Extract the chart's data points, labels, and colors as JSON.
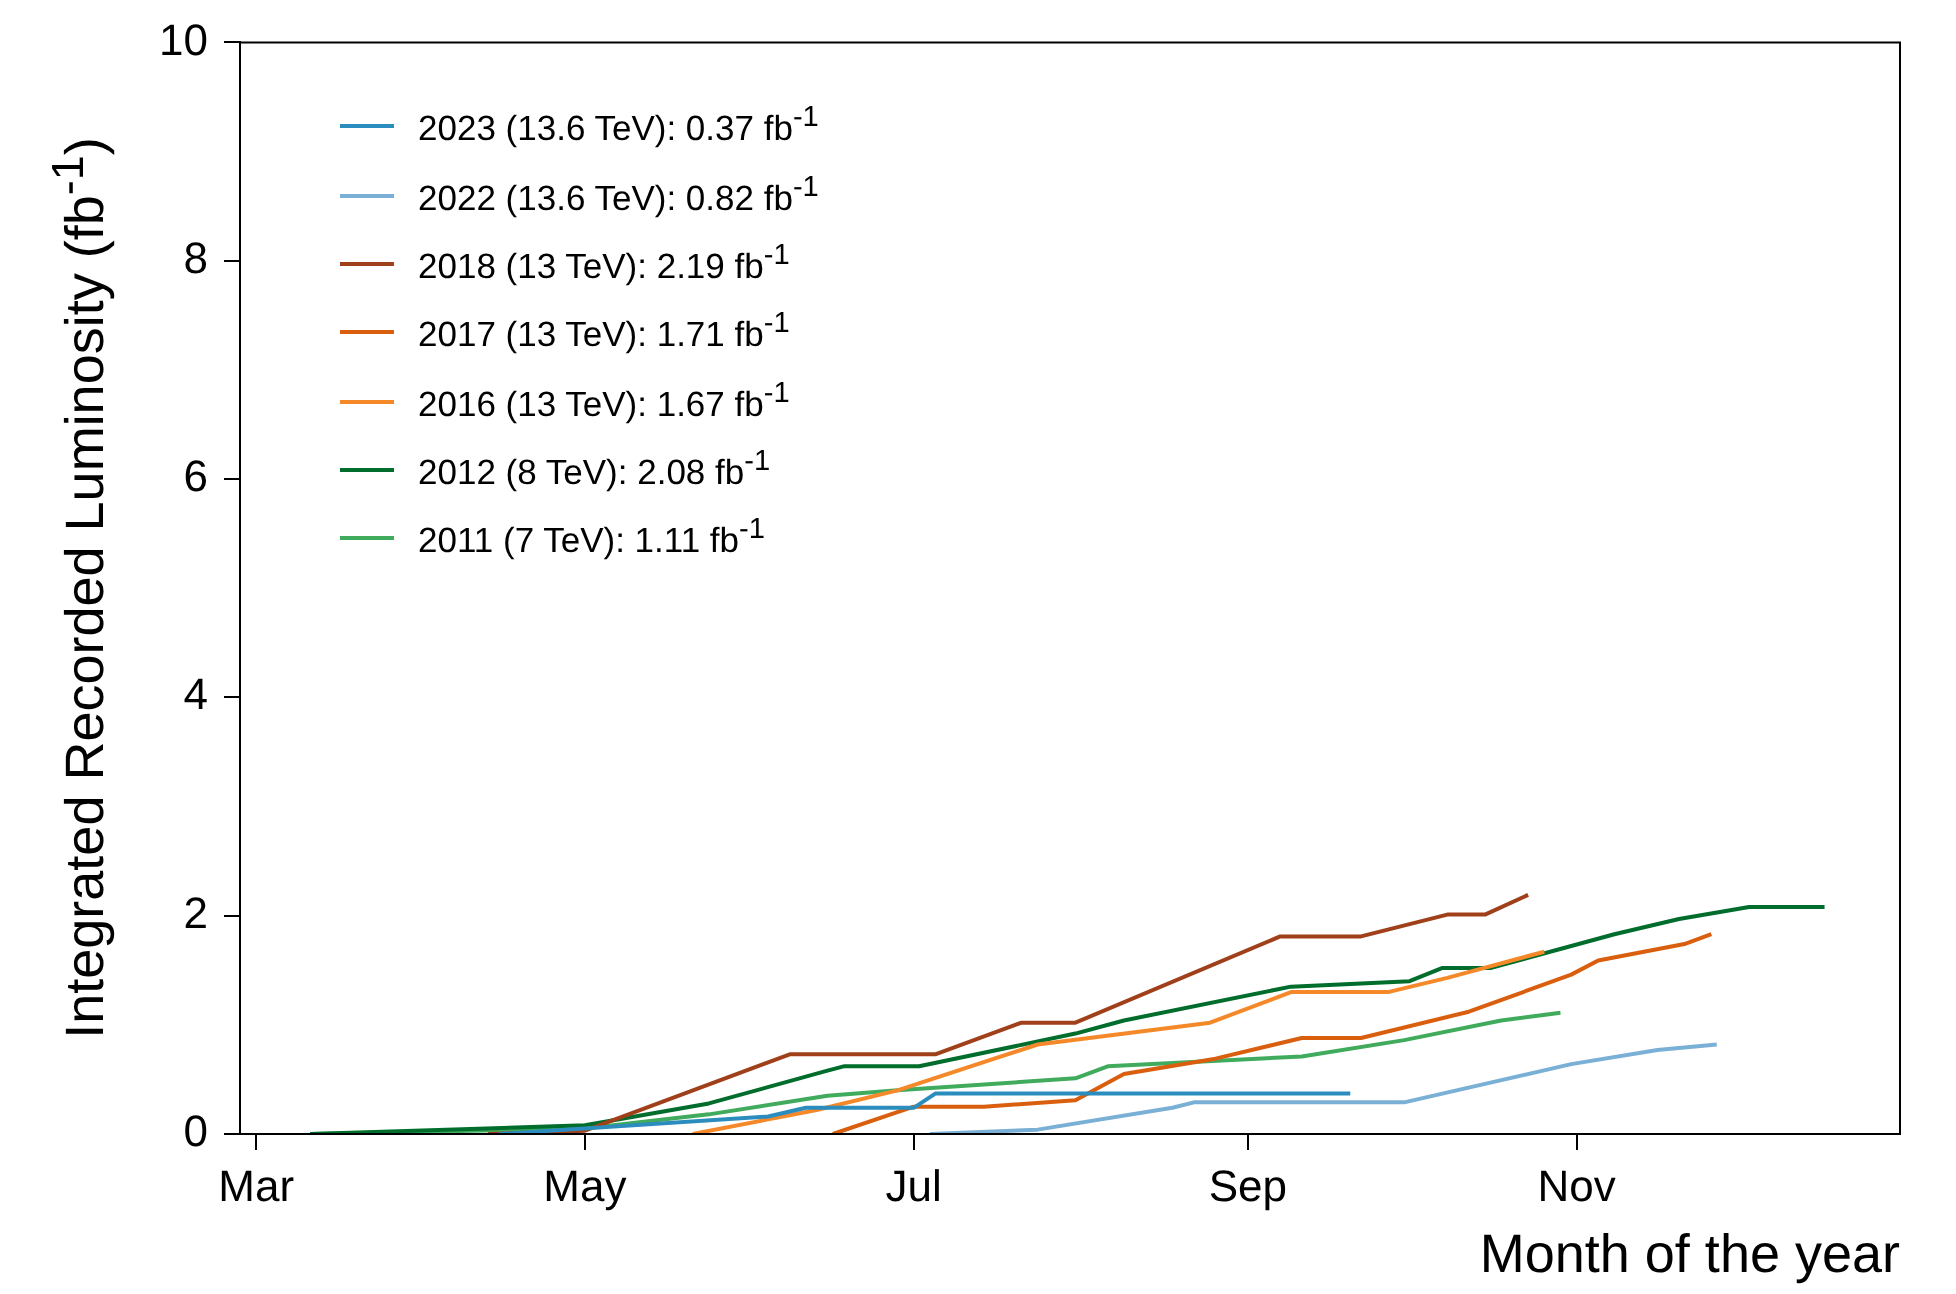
{
  "chart_data": {
    "type": "line",
    "xlabel": "Month of the year",
    "ylabel": "Integrated Recorded Luminosity (fb$^{-1}$)",
    "xlim": [
      "--02-26",
      "--12-31"
    ],
    "xticks": [
      {
        "value": "--03-01",
        "label": "Mar"
      },
      {
        "value": "--05-01",
        "label": "May"
      },
      {
        "value": "--07-01",
        "label": "Jul"
      },
      {
        "value": "--09-01",
        "label": "Sep"
      },
      {
        "value": "--11-01",
        "label": "Nov"
      }
    ],
    "ylim": [
      0,
      10
    ],
    "yticks": [
      0,
      2,
      4,
      6,
      8,
      10
    ],
    "grid": false,
    "legend": "top left",
    "line_style": "solid",
    "marker": "none",
    "series": [
      {
        "name": "2023 (13.6 TeV): 0.37 fb$^{-1}$",
        "color": "#2b8cbe",
        "x": [
          "--04-15",
          "--06-04",
          "--06-11",
          "--07-01",
          "--07-05",
          "--09-20"
        ],
        "values": [
          0,
          0.16,
          0.24,
          0.24,
          0.37,
          0.37
        ]
      },
      {
        "name": "2022 (13.6 TeV): 0.82 fb$^{-1}$",
        "color": "#7bb0d6",
        "x": [
          "--07-04",
          "--07-24",
          "--08-18",
          "--08-22",
          "--09-30",
          "--10-31",
          "--11-16",
          "--11-27"
        ],
        "values": [
          0,
          0.04,
          0.24,
          0.29,
          0.29,
          0.64,
          0.77,
          0.82
        ]
      },
      {
        "name": "2018 (13 TeV): 2.19 fb$^{-1}$",
        "color": "#a0401a",
        "x": [
          "--04-13",
          "--05-01",
          "--06-08",
          "--07-05",
          "--07-21",
          "--07-31",
          "--09-07",
          "--09-22",
          "--10-08",
          "--10-15",
          "--10-23"
        ],
        "values": [
          0,
          0.03,
          0.73,
          0.73,
          1.02,
          1.02,
          1.81,
          1.81,
          2.01,
          2.01,
          2.19
        ]
      },
      {
        "name": "2017 (13 TeV): 1.71 fb$^{-1}$",
        "color": "#d95f0e",
        "x": [
          "--06-16",
          "--07-01",
          "--07-14",
          "--07-31",
          "--08-09",
          "--08-26",
          "--09-11",
          "--09-22",
          "--10-12",
          "--10-31",
          "--11-05",
          "--11-21",
          "--11-26"
        ],
        "values": [
          0,
          0.25,
          0.25,
          0.31,
          0.55,
          0.69,
          0.88,
          0.88,
          1.12,
          1.46,
          1.59,
          1.74,
          1.83
        ]
      },
      {
        "name": "2016 (13 TeV): 1.67 fb$^{-1}$",
        "color": "#f5892a",
        "x": [
          "--05-21",
          "--06-13",
          "--06-28",
          "--07-24",
          "--08-25",
          "--09-09",
          "--09-27",
          "--10-08",
          "--10-26"
        ],
        "values": [
          0,
          0.22,
          0.4,
          0.82,
          1.02,
          1.3,
          1.3,
          1.43,
          1.67
        ]
      },
      {
        "name": "2012 (8 TeV): 2.08 fb$^{-1}$",
        "color": "#006d2c",
        "x": [
          "--03-11",
          "--05-01",
          "--05-24",
          "--06-15",
          "--06-18",
          "--07-02",
          "--07-31",
          "--08-09",
          "--09-09",
          "--10-01",
          "--10-07",
          "--10-16",
          "--11-08",
          "--11-20",
          "--12-03",
          "--12-17"
        ],
        "values": [
          0,
          0.08,
          0.28,
          0.58,
          0.62,
          0.62,
          0.92,
          1.04,
          1.35,
          1.4,
          1.52,
          1.52,
          1.83,
          1.97,
          2.08,
          2.08
        ]
      },
      {
        "name": "2011 (7 TeV): 1.11 fb$^{-1}$",
        "color": "#41ab5d",
        "x": [
          "--03-11",
          "--05-01",
          "--05-24",
          "--06-15",
          "--06-28",
          "--07-31",
          "--08-06",
          "--09-11",
          "--09-30",
          "--10-18",
          "--10-29"
        ],
        "values": [
          0,
          0.05,
          0.18,
          0.35,
          0.4,
          0.51,
          0.62,
          0.71,
          0.86,
          1.04,
          1.11
        ]
      }
    ]
  }
}
